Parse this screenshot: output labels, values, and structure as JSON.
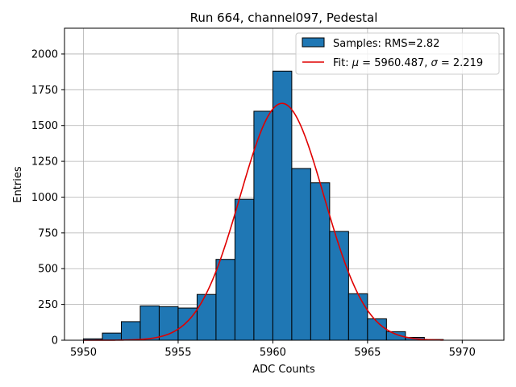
{
  "chart_data": {
    "type": "bar",
    "title": "Run 664, channel097, Pedestal",
    "xlabel": "ADC Counts",
    "ylabel": "Entries",
    "xlim": [
      5949.0,
      5972.2
    ],
    "ylim": [
      0,
      2180
    ],
    "xticks": [
      5950,
      5955,
      5960,
      5965,
      5970
    ],
    "yticks": [
      0,
      250,
      500,
      750,
      1000,
      1250,
      1500,
      1750,
      2000
    ],
    "grid": true,
    "legend_position": "top-right",
    "legend": [
      {
        "type": "patch",
        "label": "Samples: RMS=2.82",
        "color": "#1f77b4"
      },
      {
        "type": "line",
        "label_prefix": "Fit: ",
        "mu_symbol": "μ",
        "mu_text": " = 5960.487, ",
        "sigma_symbol": "σ",
        "sigma_text": " = 2.219",
        "color": "#e00000"
      }
    ],
    "series": [
      {
        "kind": "histogram",
        "color": "#1f77b4",
        "bin_edges": [
          5950,
          5951,
          5952,
          5953,
          5954,
          5955,
          5956,
          5957,
          5958,
          5959,
          5960,
          5961,
          5962,
          5963,
          5964,
          5965,
          5966,
          5967,
          5968,
          5969,
          5970,
          5971
        ],
        "counts": [
          10,
          50,
          130,
          240,
          235,
          225,
          320,
          565,
          985,
          1600,
          1880,
          1200,
          1100,
          760,
          325,
          150,
          60,
          20,
          5,
          0,
          0
        ]
      },
      {
        "kind": "gaussian_fit",
        "color": "#e00000",
        "mu": 5960.487,
        "sigma": 2.219,
        "amplitude": 1655,
        "x_range": [
          5950,
          5969
        ]
      }
    ]
  }
}
